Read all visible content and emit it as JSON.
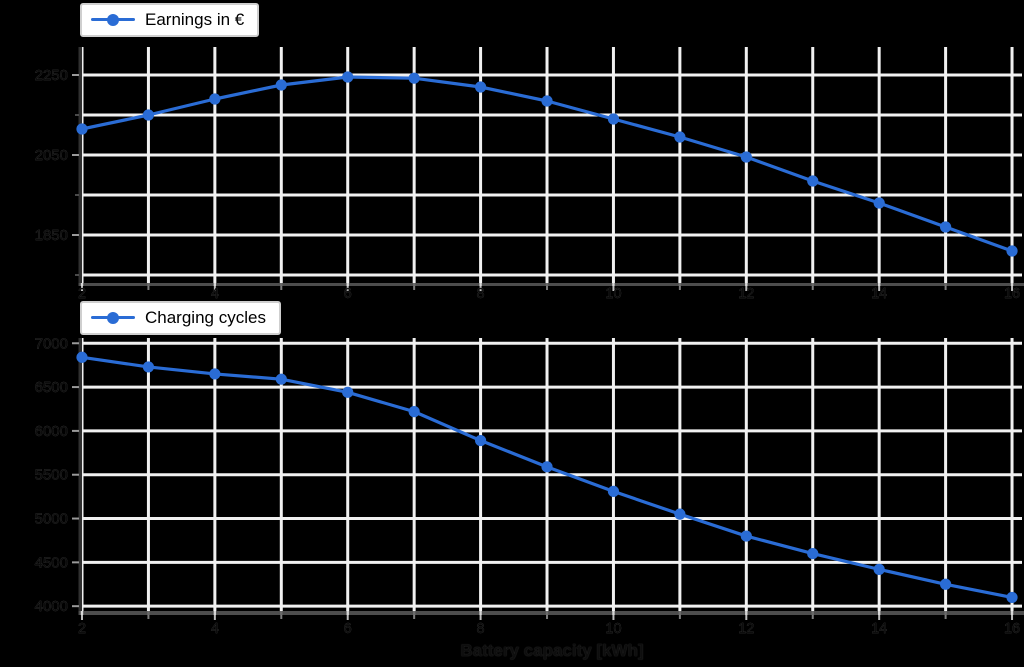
{
  "colors": {
    "background": "#000000",
    "series_blue": "#2a6cd5",
    "gridline": "#f1f1f1",
    "legend_border": "#cfcfcf",
    "legend_background": "#ffffff",
    "spine_dark": "#303030",
    "spine_bottom": "#4d4d4d",
    "tick_major": "#d6d6d6",
    "tick_minor": "#7d7d7d"
  },
  "xlabel": "Battery capacity [kWh]",
  "chart_data": [
    {
      "type": "line",
      "legend": "Earnings in €",
      "series_color": "#2a6cd5",
      "marker": "circle",
      "grid": true,
      "legend_position": "upper-left-outside",
      "x": [
        2,
        3,
        4,
        5,
        6,
        7,
        8,
        9,
        10,
        11,
        12,
        13,
        14,
        15,
        16
      ],
      "values": [
        2115,
        2150,
        2190,
        2225,
        2245,
        2242,
        2220,
        2185,
        2140,
        2095,
        2045,
        1985,
        1930,
        1870,
        1810
      ],
      "x_tick_values": [
        2,
        4,
        6,
        8,
        10,
        12,
        14,
        16
      ],
      "x_tick_labels": [
        "2",
        "4",
        "6",
        "8",
        "10",
        "12",
        "14",
        "16"
      ],
      "y_tick_values": [
        2250,
        2050,
        1850
      ],
      "y_tick_labels": [
        "2250",
        "2050",
        "1850"
      ],
      "y_minor_tick_values": [
        2150,
        1950,
        1750
      ],
      "xlim": [
        2,
        16.15
      ],
      "ylim": [
        1730,
        2320
      ],
      "xlabel": "",
      "ylabel": ""
    },
    {
      "type": "line",
      "legend": "Charging cycles",
      "series_color": "#2a6cd5",
      "marker": "circle",
      "grid": true,
      "legend_position": "upper-left-outside",
      "x": [
        2,
        3,
        4,
        5,
        6,
        7,
        8,
        9,
        10,
        11,
        12,
        13,
        14,
        15,
        16
      ],
      "values": [
        6840,
        6730,
        6650,
        6590,
        6440,
        6220,
        5890,
        5590,
        5310,
        5050,
        4800,
        4600,
        4420,
        4250,
        4100
      ],
      "x_tick_values": [
        2,
        4,
        6,
        8,
        10,
        12,
        14,
        16
      ],
      "x_tick_labels": [
        "2",
        "4",
        "6",
        "8",
        "10",
        "12",
        "14",
        "16"
      ],
      "y_tick_values": [
        7000,
        6500,
        6000,
        5500,
        5000,
        4500,
        4000
      ],
      "y_tick_labels": [
        "7000",
        "6500",
        "6000",
        "5500",
        "5000",
        "4500",
        "4000"
      ],
      "y_minor_tick_values": [],
      "xlim": [
        2,
        16.15
      ],
      "ylim": [
        3945,
        7060
      ],
      "xlabel": "Battery capacity [kWh]",
      "ylabel": ""
    }
  ]
}
